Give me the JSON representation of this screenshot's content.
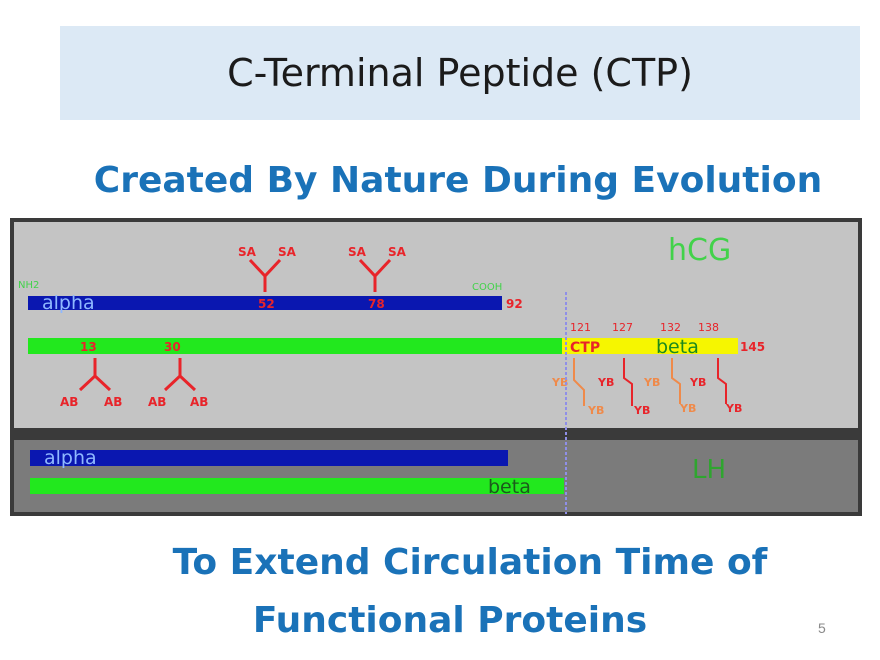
{
  "slide": {
    "title": "C-Terminal Peptide (CTP)",
    "subtitle": "Created By Nature During Evolution",
    "footer_line1": "To Extend Circulation Time of",
    "footer_line2": "Functional Proteins",
    "page_number": "5"
  },
  "diagram": {
    "hcg": {
      "label": "hCG",
      "alpha_label": "alpha",
      "alpha_end": "92",
      "nh2_label": "NH2",
      "cooh_label": "COOH",
      "alpha_sites": [
        "52",
        "78"
      ],
      "sa_label": "SA",
      "beta_label": "beta",
      "beta_end": "145",
      "beta_sites": [
        "13",
        "30"
      ],
      "ctp_label": "CTP",
      "ctp_positions": [
        "121",
        "127",
        "132",
        "138"
      ],
      "ab_label": "AB",
      "o_glycan_label": "YB"
    },
    "lh": {
      "label": "LH",
      "alpha_label": "alpha",
      "beta_label": "beta"
    },
    "colors": {
      "alpha": "#0a17b0",
      "beta": "#22e81e",
      "ctp": "#f6f600",
      "sugar": "#e8242a",
      "orange": "#ef8a4a",
      "label_green": "#42d24a",
      "panel_light": "#c4c4c4",
      "panel_dark": "#7b7b7b",
      "divider": "#8f8fe8"
    }
  }
}
